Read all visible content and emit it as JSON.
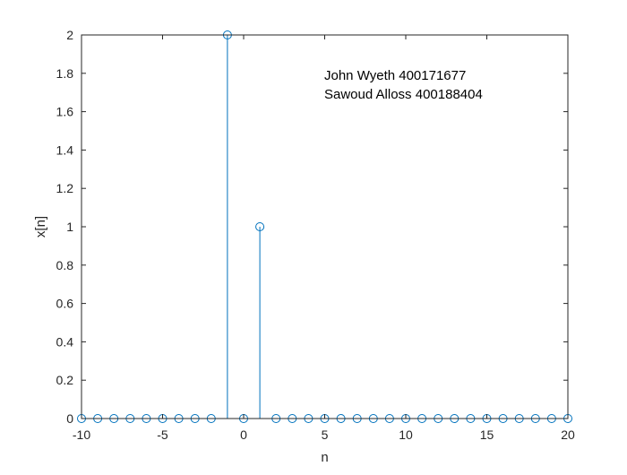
{
  "chart_data": {
    "type": "stem",
    "xlabel": "n",
    "ylabel": "x[n]",
    "xlim": [
      -10,
      20
    ],
    "ylim": [
      0,
      2
    ],
    "xticks": [
      -10,
      -5,
      0,
      5,
      10,
      15,
      20
    ],
    "xtick_labels": [
      "-10",
      "-5",
      "0",
      "5",
      "10",
      "15",
      "20"
    ],
    "yticks": [
      0,
      0.2,
      0.4,
      0.6,
      0.8,
      1,
      1.2,
      1.4,
      1.6,
      1.8,
      2
    ],
    "ytick_labels": [
      "0",
      "0.2",
      "0.4",
      "0.6",
      "0.8",
      "1",
      "1.2",
      "1.4",
      "1.6",
      "1.8",
      "2"
    ],
    "grid": false,
    "series": [
      {
        "color": "#0072bd",
        "marker": "circle-open",
        "x": [
          -10,
          -9,
          -8,
          -7,
          -6,
          -5,
          -4,
          -3,
          -2,
          -1,
          0,
          1,
          2,
          3,
          4,
          5,
          6,
          7,
          8,
          9,
          10,
          11,
          12,
          13,
          14,
          15,
          16,
          17,
          18,
          19,
          20
        ],
        "y": [
          0,
          0,
          0,
          0,
          0,
          0,
          0,
          0,
          0,
          2,
          0,
          1,
          0,
          0,
          0,
          0,
          0,
          0,
          0,
          0,
          0,
          0,
          0,
          0,
          0,
          0,
          0,
          0,
          0,
          0,
          0
        ]
      }
    ],
    "annotations": [
      "John Wyeth 400171677",
      "Sawoud Alloss 400188404"
    ]
  }
}
